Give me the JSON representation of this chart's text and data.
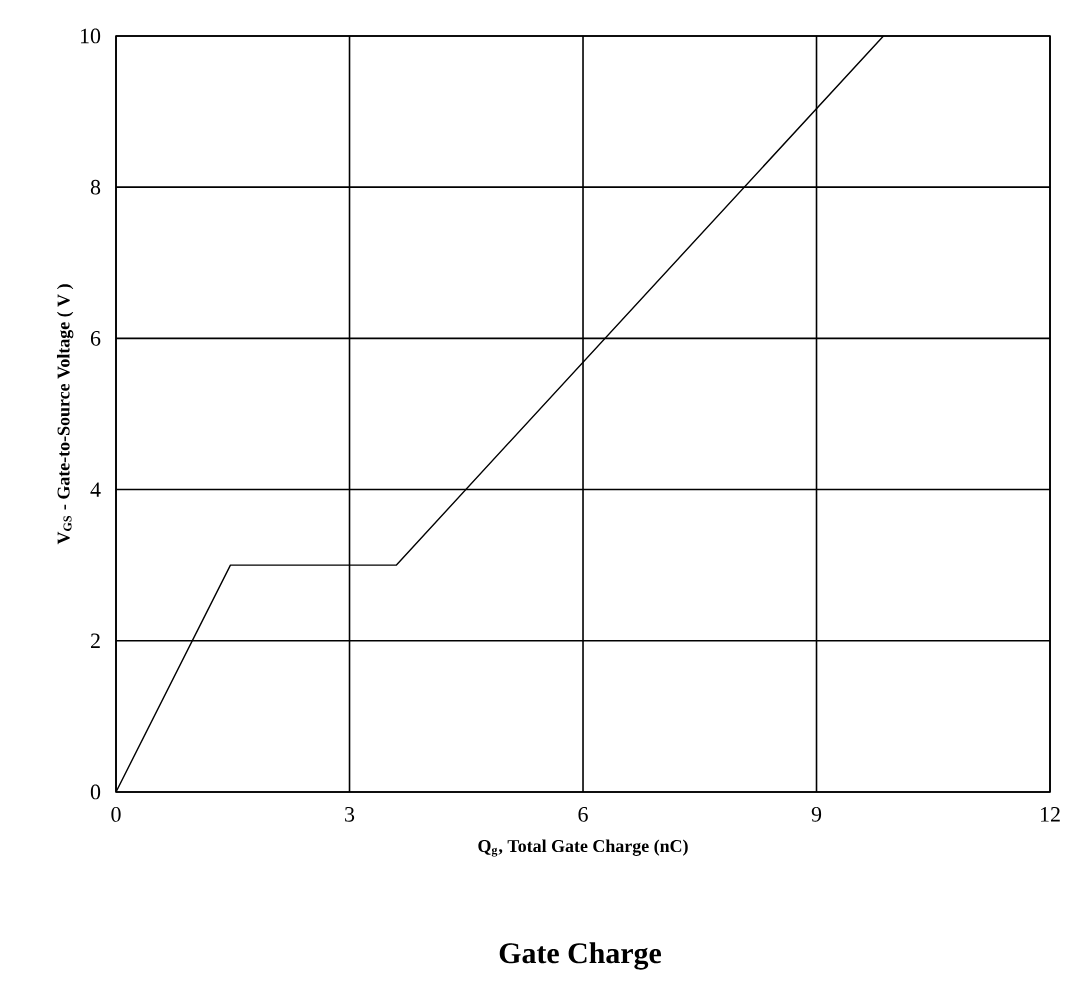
{
  "chart_data": {
    "type": "line",
    "title": "Gate Charge",
    "xlabel": "Q$_{g}$, Total Gate Charge (nC)",
    "ylabel": "V$_{GS}$ - Gate-to-Source Voltage ( V )",
    "series": [
      {
        "x": [
          0,
          1.47,
          3.6,
          9.86
        ],
        "values": [
          0,
          3.0,
          3.0,
          10
        ],
        "color": "#000000"
      }
    ],
    "xlim": [
      0,
      12
    ],
    "xticks": [
      0,
      3,
      6,
      9,
      12
    ],
    "ylim": [
      0,
      10
    ],
    "yticks": [
      0,
      2,
      4,
      6,
      8,
      10
    ],
    "grid": true,
    "marker": "none",
    "line_style": "solid"
  }
}
